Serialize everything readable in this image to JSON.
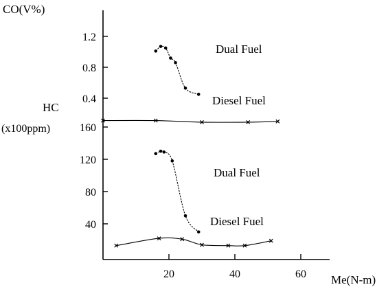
{
  "chart_data": [
    {
      "type": "line",
      "ylabel": "CO(V%)",
      "xlabel": "Me(N-m)",
      "x_ticks": [
        20,
        40,
        60
      ],
      "y_ticks": [
        "1.2",
        "0.8",
        "0.4"
      ],
      "ylim": [
        0.15,
        1.45
      ],
      "xlim": [
        0,
        70
      ],
      "series": [
        {
          "name": "Dual Fuel",
          "x": [
            16,
            17.5,
            19,
            20.5,
            22,
            25,
            29
          ],
          "y": [
            1.01,
            1.07,
            1.05,
            0.92,
            0.86,
            0.53,
            0.45
          ]
        },
        {
          "name": "Diesel Fuel",
          "x": [],
          "y": []
        }
      ],
      "grid": false
    },
    {
      "type": "line",
      "ylabel": "HC",
      "ylabel_unit": "(x100ppm)",
      "x_ticks": [
        20,
        40,
        60
      ],
      "y_ticks": [
        "160",
        "120",
        "80",
        "40"
      ],
      "ylim": [
        10,
        175
      ],
      "xlim": [
        0,
        70
      ],
      "series": [
        {
          "name": "Diesel Fuel",
          "x": [
            0,
            16,
            30,
            44,
            53
          ],
          "y": [
            168,
            168,
            166,
            166,
            167
          ]
        },
        {
          "name": "Dual Fuel",
          "x": [
            16,
            17.5,
            18.5,
            21,
            25,
            29
          ],
          "y": [
            127,
            130,
            129,
            118,
            50,
            30
          ]
        },
        {
          "name": "Diesel Fuel",
          "x": [
            4,
            17,
            24,
            30,
            38,
            43,
            51
          ],
          "y": [
            13,
            22,
            21,
            14,
            13,
            13,
            19
          ]
        }
      ],
      "grid": false
    }
  ]
}
